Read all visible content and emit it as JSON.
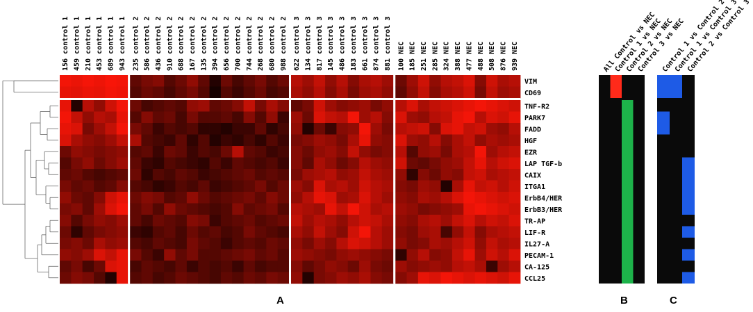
{
  "columns": [
    "156 control 1",
    "459 control 1",
    "210 control 1",
    "453 control 1",
    "689 control 1",
    "943 control 1",
    "235 control 2",
    "586 control 2",
    "436 control 2",
    "910 control 2",
    "688 control 2",
    "167 control 2",
    "135 control 2",
    "394 control 2",
    "656 control 2",
    "700 control 2",
    "744 control 2",
    "268 control 2",
    "680 control 2",
    "988 control 2",
    "622 control 3",
    "134 control 3",
    "817 control 3",
    "145 control 3",
    "486 control 3",
    "183 control 3",
    "661 control 3",
    "874 control 3",
    "881 control 3",
    "100 NEC",
    "185 NEC",
    "251 NEC",
    "285 NEC",
    "324 NEC",
    "388 NEC",
    "477 NEC",
    "488 NEC",
    "508 NEC",
    "876 NEC",
    "939 NEC"
  ],
  "group_sizes": [
    6,
    14,
    9,
    11
  ],
  "rows": [
    "VIM",
    "CD69",
    "TNF-R2",
    "PARK7",
    "FADD",
    "HGF",
    "EZR",
    "LAP TGF-b",
    "CAIX",
    "ITGA1",
    "ErbB4/HER",
    "ErbB3/HER",
    "TR-AP",
    "LIF-R",
    "IL27-A",
    "PECAM-1",
    "CA-125",
    "CCL25"
  ],
  "panel_b": {
    "letter": "B",
    "columns": [
      "All Control vs NEC",
      "Control 1 vs NEC",
      "Control 2 vs NEC",
      "Control 3 vs NEC"
    ],
    "marks": [
      {
        "col": 1,
        "rows": [
          0,
          1
        ],
        "color": "#ff2a1a"
      },
      {
        "col": 2,
        "rows": [
          2,
          3,
          4,
          5,
          6,
          7,
          8,
          9,
          10,
          11,
          12,
          13,
          14,
          15,
          16,
          17
        ],
        "color": "#1db34a"
      }
    ]
  },
  "panel_c": {
    "letter": "C",
    "columns": [
      "Control 1 vs Control 2",
      "Control 1 vs Control 3",
      "Control 2 vs Control 3"
    ],
    "marks": [
      {
        "col": 0,
        "rows": [
          0,
          1
        ],
        "color": "#1e5be6"
      },
      {
        "col": 1,
        "rows": [
          0,
          1
        ],
        "color": "#1e5be6"
      },
      {
        "col": 0,
        "rows": [
          3,
          4
        ],
        "color": "#1e5be6"
      },
      {
        "col": 2,
        "rows": [
          7,
          8,
          9,
          10,
          11
        ],
        "color": "#1e5be6"
      },
      {
        "col": 2,
        "rows": [
          13
        ],
        "color": "#1e5be6"
      },
      {
        "col": 2,
        "rows": [
          15
        ],
        "color": "#1e5be6"
      },
      {
        "col": 2,
        "rows": [
          17
        ],
        "color": "#1e5be6"
      }
    ]
  },
  "panel_a": {
    "letter": "A"
  },
  "colors": {
    "low": "#000000",
    "high": "#ff1a0a",
    "background_cell": "#0a0a0a"
  },
  "heatmap_values": [
    [
      0.95,
      0.92,
      0.96,
      0.93,
      0.97,
      0.95,
      0.35,
      0.45,
      0.5,
      0.3,
      0.4,
      0.55,
      0.35,
      0.1,
      0.4,
      0.25,
      0.35,
      0.45,
      0.3,
      0.4,
      0.7,
      0.6,
      0.75,
      0.55,
      0.7,
      0.5,
      0.65,
      0.7,
      0.6,
      0.4,
      0.6,
      0.8,
      0.55,
      0.7,
      0.75,
      0.85,
      0.5,
      0.8,
      0.65,
      0.7
    ],
    [
      0.9,
      0.88,
      0.92,
      0.9,
      0.95,
      0.93,
      0.3,
      0.4,
      0.35,
      0.25,
      0.35,
      0.45,
      0.3,
      0.05,
      0.3,
      0.2,
      0.3,
      0.4,
      0.25,
      0.3,
      0.65,
      0.55,
      0.7,
      0.5,
      0.65,
      0.45,
      0.6,
      0.65,
      0.55,
      0.35,
      0.55,
      0.75,
      0.5,
      0.65,
      0.7,
      0.8,
      0.45,
      0.75,
      0.6,
      0.65
    ],
    [
      0.9,
      0.1,
      0.7,
      0.55,
      0.8,
      0.95,
      0.4,
      0.25,
      0.3,
      0.35,
      0.3,
      0.55,
      0.6,
      0.35,
      0.4,
      0.5,
      0.75,
      0.45,
      0.65,
      0.5,
      0.35,
      0.45,
      0.8,
      0.6,
      0.5,
      0.55,
      0.6,
      0.45,
      0.55,
      0.7,
      0.85,
      0.65,
      0.75,
      0.8,
      0.85,
      0.9,
      0.95,
      0.9,
      0.85,
      0.8
    ],
    [
      0.95,
      0.75,
      0.55,
      0.7,
      0.65,
      0.9,
      0.3,
      0.5,
      0.35,
      0.4,
      0.25,
      0.45,
      0.3,
      0.3,
      0.35,
      0.25,
      0.5,
      0.3,
      0.55,
      0.2,
      0.6,
      0.4,
      0.85,
      0.75,
      0.7,
      0.95,
      0.6,
      0.7,
      0.5,
      0.85,
      0.6,
      0.55,
      0.7,
      0.75,
      0.9,
      0.95,
      0.7,
      0.85,
      0.8,
      0.9
    ],
    [
      0.9,
      0.85,
      0.45,
      0.6,
      0.75,
      0.95,
      0.45,
      0.35,
      0.2,
      0.3,
      0.25,
      0.3,
      0.15,
      0.15,
      0.1,
      0.2,
      0.2,
      0.35,
      0.15,
      0.25,
      0.55,
      0.1,
      0.4,
      0.2,
      0.5,
      0.55,
      0.95,
      0.6,
      0.45,
      0.7,
      0.75,
      0.8,
      0.5,
      0.85,
      0.9,
      0.75,
      0.8,
      0.6,
      0.55,
      0.7
    ],
    [
      0.85,
      0.65,
      0.55,
      0.5,
      0.6,
      0.75,
      0.65,
      0.3,
      0.25,
      0.2,
      0.35,
      0.15,
      0.3,
      0.1,
      0.2,
      0.15,
      0.25,
      0.15,
      0.3,
      0.2,
      0.45,
      0.5,
      0.6,
      0.55,
      0.45,
      0.65,
      0.9,
      0.55,
      0.5,
      0.85,
      0.6,
      0.55,
      0.7,
      0.5,
      0.65,
      0.75,
      0.55,
      0.65,
      0.6,
      0.65
    ],
    [
      0.4,
      0.55,
      0.5,
      0.45,
      0.5,
      0.55,
      0.3,
      0.35,
      0.2,
      0.4,
      0.35,
      0.2,
      0.3,
      0.25,
      0.4,
      0.7,
      0.35,
      0.3,
      0.2,
      0.25,
      0.5,
      0.4,
      0.55,
      0.6,
      0.5,
      0.75,
      0.55,
      0.45,
      0.5,
      0.7,
      0.3,
      0.55,
      0.6,
      0.45,
      0.65,
      0.7,
      0.95,
      0.6,
      0.7,
      0.75
    ],
    [
      0.3,
      0.45,
      0.55,
      0.4,
      0.5,
      0.6,
      0.35,
      0.2,
      0.15,
      0.3,
      0.25,
      0.2,
      0.15,
      0.3,
      0.2,
      0.35,
      0.3,
      0.25,
      0.3,
      0.2,
      0.5,
      0.35,
      0.65,
      0.55,
      0.4,
      0.5,
      0.7,
      0.6,
      0.55,
      0.8,
      0.4,
      0.35,
      0.45,
      0.55,
      0.6,
      0.75,
      0.9,
      0.7,
      0.8,
      0.85
    ],
    [
      0.35,
      0.4,
      0.3,
      0.25,
      0.3,
      0.35,
      0.4,
      0.15,
      0.3,
      0.25,
      0.35,
      0.3,
      0.2,
      0.25,
      0.3,
      0.35,
      0.4,
      0.3,
      0.35,
      0.3,
      0.45,
      0.6,
      0.65,
      0.7,
      0.55,
      0.6,
      0.75,
      0.65,
      0.6,
      0.55,
      0.15,
      0.5,
      0.4,
      0.55,
      0.5,
      0.75,
      0.8,
      0.65,
      0.7,
      0.75
    ],
    [
      0.45,
      0.35,
      0.4,
      0.3,
      0.35,
      0.5,
      0.3,
      0.25,
      0.15,
      0.2,
      0.3,
      0.25,
      0.35,
      0.2,
      0.25,
      0.3,
      0.35,
      0.45,
      0.3,
      0.4,
      0.6,
      0.5,
      0.85,
      0.65,
      0.7,
      0.6,
      0.8,
      0.7,
      0.65,
      0.5,
      0.45,
      0.6,
      0.55,
      0.1,
      0.65,
      0.9,
      0.75,
      0.8,
      0.7,
      0.8
    ],
    [
      0.55,
      0.4,
      0.35,
      0.5,
      0.8,
      0.9,
      0.4,
      0.5,
      0.45,
      0.3,
      0.35,
      0.55,
      0.4,
      0.3,
      0.35,
      0.4,
      0.45,
      0.35,
      0.5,
      0.4,
      0.55,
      0.7,
      0.9,
      0.85,
      0.6,
      0.65,
      0.85,
      0.7,
      0.6,
      0.55,
      0.5,
      0.65,
      0.6,
      0.7,
      0.85,
      0.95,
      0.9,
      0.85,
      0.8,
      0.85
    ],
    [
      0.45,
      0.5,
      0.35,
      0.6,
      0.85,
      0.95,
      0.35,
      0.45,
      0.3,
      0.55,
      0.4,
      0.35,
      0.3,
      0.25,
      0.3,
      0.5,
      0.35,
      0.4,
      0.45,
      0.3,
      0.7,
      0.65,
      0.6,
      0.9,
      0.75,
      0.95,
      0.8,
      0.65,
      0.7,
      0.6,
      0.55,
      0.45,
      0.5,
      0.55,
      0.6,
      0.9,
      0.95,
      0.9,
      0.85,
      0.8
    ],
    [
      0.5,
      0.3,
      0.45,
      0.55,
      0.5,
      0.6,
      0.35,
      0.25,
      0.4,
      0.35,
      0.3,
      0.5,
      0.45,
      0.2,
      0.3,
      0.35,
      0.4,
      0.3,
      0.35,
      0.4,
      0.75,
      0.6,
      0.7,
      0.65,
      0.55,
      0.7,
      0.8,
      0.75,
      0.65,
      0.55,
      0.5,
      0.65,
      0.7,
      0.6,
      0.75,
      0.85,
      0.7,
      0.8,
      0.75,
      0.85
    ],
    [
      0.4,
      0.15,
      0.35,
      0.45,
      0.5,
      0.55,
      0.2,
      0.15,
      0.3,
      0.35,
      0.25,
      0.4,
      0.3,
      0.35,
      0.25,
      0.3,
      0.45,
      0.35,
      0.3,
      0.25,
      0.65,
      0.55,
      0.75,
      0.6,
      0.5,
      0.8,
      0.95,
      0.7,
      0.6,
      0.5,
      0.45,
      0.6,
      0.65,
      0.25,
      0.55,
      0.75,
      0.5,
      0.65,
      0.7,
      0.75
    ],
    [
      0.45,
      0.5,
      0.4,
      0.65,
      0.55,
      0.6,
      0.3,
      0.25,
      0.35,
      0.3,
      0.25,
      0.45,
      0.35,
      0.3,
      0.2,
      0.3,
      0.35,
      0.3,
      0.4,
      0.35,
      0.55,
      0.45,
      0.6,
      0.5,
      0.7,
      0.85,
      0.8,
      0.7,
      0.6,
      0.55,
      0.45,
      0.5,
      0.65,
      0.6,
      0.7,
      0.8,
      0.55,
      0.75,
      0.65,
      0.7
    ],
    [
      0.55,
      0.5,
      0.6,
      0.85,
      0.75,
      0.9,
      0.45,
      0.3,
      0.2,
      0.55,
      0.35,
      0.45,
      0.3,
      0.3,
      0.35,
      0.4,
      0.45,
      0.35,
      0.4,
      0.3,
      0.6,
      0.55,
      0.5,
      0.45,
      0.55,
      0.6,
      0.55,
      0.5,
      0.45,
      0.15,
      0.55,
      0.7,
      0.5,
      0.55,
      0.75,
      0.9,
      0.6,
      0.8,
      0.7,
      0.85
    ],
    [
      0.35,
      0.45,
      0.25,
      0.4,
      0.85,
      0.9,
      0.25,
      0.35,
      0.3,
      0.25,
      0.35,
      0.2,
      0.3,
      0.25,
      0.3,
      0.2,
      0.35,
      0.25,
      0.3,
      0.3,
      0.5,
      0.35,
      0.45,
      0.55,
      0.5,
      0.4,
      0.6,
      0.45,
      0.4,
      0.6,
      0.5,
      0.55,
      0.6,
      0.55,
      0.7,
      0.75,
      0.65,
      0.2,
      0.6,
      0.7
    ],
    [
      0.4,
      0.5,
      0.45,
      0.3,
      0.1,
      0.9,
      0.3,
      0.35,
      0.25,
      0.3,
      0.4,
      0.35,
      0.3,
      0.25,
      0.35,
      0.3,
      0.4,
      0.35,
      0.45,
      0.4,
      0.55,
      0.1,
      0.45,
      0.5,
      0.6,
      0.55,
      0.65,
      0.5,
      0.45,
      0.5,
      0.6,
      0.9,
      0.85,
      0.95,
      0.9,
      0.85,
      0.9,
      0.85,
      0.8,
      0.9
    ]
  ]
}
